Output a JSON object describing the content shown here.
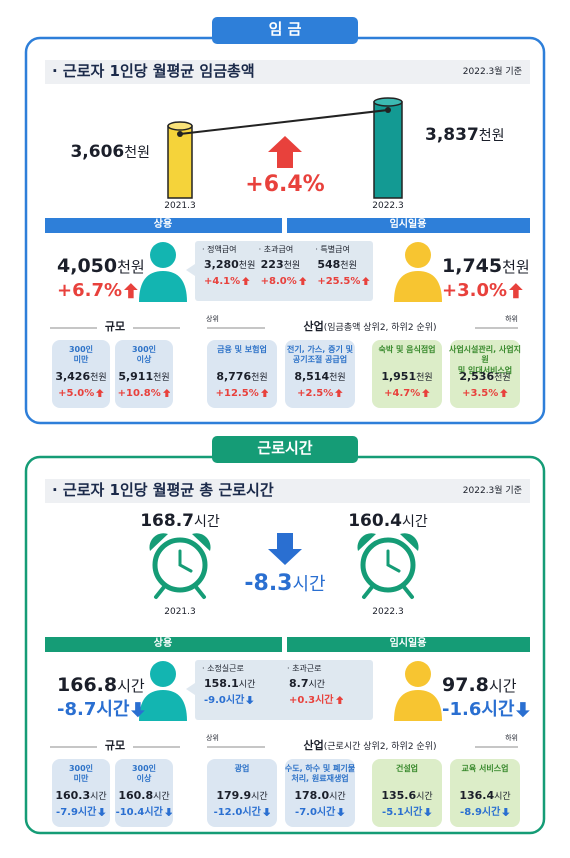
{
  "wage": {
    "tab": "임 금",
    "title": "· 근로자 1인당 월평균 임금총액",
    "date": "2022.3월 기준",
    "prev": {
      "value": "3,606",
      "unit": "천원",
      "label": "2021.3"
    },
    "curr": {
      "value": "3,837",
      "unit": "천원",
      "label": "2022.3"
    },
    "change": {
      "value": "+6.4%"
    },
    "regular": {
      "header": "상용",
      "value": "4,050",
      "unit": "천원",
      "change": "+6.7%",
      "items": [
        {
          "label": "· 정액급여",
          "value": "3,280",
          "unit": "천원",
          "change": "+4.1%"
        },
        {
          "label": "· 초과급여",
          "value": "223",
          "unit": "천원",
          "change": "+8.0%"
        },
        {
          "label": "· 특별급여",
          "value": "548",
          "unit": "천원",
          "change": "+25.5%"
        }
      ]
    },
    "temp": {
      "header": "임시일용",
      "value": "1,745",
      "unit": "천원",
      "change": "+3.0%"
    },
    "size": {
      "title": "규모",
      "items": [
        {
          "label": "300인\n미만",
          "value": "3,426",
          "unit": "천원",
          "change": "+5.0%"
        },
        {
          "label": "300인\n이상",
          "value": "5,911",
          "unit": "천원",
          "change": "+10.8%"
        }
      ]
    },
    "industry": {
      "title": "산업",
      "subtitle": "(임금총액 상위2, 하위2 순위)",
      "top": "상위",
      "bottom": "하위",
      "items": [
        {
          "label": "금융 및 보험업",
          "value": "8,776",
          "unit": "천원",
          "change": "+12.5%"
        },
        {
          "label": "전기, 가스, 증기 및\n공기조절 공급업",
          "value": "8,514",
          "unit": "천원",
          "change": "+2.5%"
        },
        {
          "label": "숙박 및 음식점업",
          "value": "1,951",
          "unit": "천원",
          "change": "+4.7%"
        },
        {
          "label": "사업시설관리, 사업지원\n및 임대서비스업",
          "value": "2,536",
          "unit": "천원",
          "change": "+3.5%"
        }
      ]
    }
  },
  "hours": {
    "tab": "근로시간",
    "title": "· 근로자 1인당 월평균 총 근로시간",
    "date": "2022.3월 기준",
    "prev": {
      "value": "168.7",
      "unit": "시간",
      "label": "2021.3"
    },
    "curr": {
      "value": "160.4",
      "unit": "시간",
      "label": "2022.3"
    },
    "change": {
      "value": "-8.3",
      "unit": "시간"
    },
    "regular": {
      "header": "상용",
      "value": "166.8",
      "unit": "시간",
      "change": "-8.7시간",
      "items": [
        {
          "label": "· 소정실근로",
          "value": "158.1",
          "unit": "시간",
          "change": "-9.0시간"
        },
        {
          "label": "· 초과근로",
          "value": "8.7",
          "unit": "시간",
          "change": "+0.3시간"
        }
      ]
    },
    "temp": {
      "header": "임시일용",
      "value": "97.8",
      "unit": "시간",
      "change": "-1.6시간"
    },
    "size": {
      "title": "규모",
      "items": [
        {
          "label": "300인\n미만",
          "value": "160.3",
          "unit": "시간",
          "change": "-7.9시간"
        },
        {
          "label": "300인\n이상",
          "value": "160.8",
          "unit": "시간",
          "change": "-10.4시간"
        }
      ]
    },
    "industry": {
      "title": "산업",
      "subtitle": "(근로시간 상위2, 하위2 순위)",
      "top": "상위",
      "bottom": "하위",
      "items": [
        {
          "label": "광업",
          "value": "179.9",
          "unit": "시간",
          "change": "-12.0시간"
        },
        {
          "label": "수도, 하수 및 폐기물\n처리, 원료재생업",
          "value": "178.0",
          "unit": "시간",
          "change": "-7.0시간"
        },
        {
          "label": "건설업",
          "value": "135.6",
          "unit": "시간",
          "change": "-5.1시간"
        },
        {
          "label": "교육 서비스업",
          "value": "136.4",
          "unit": "시간",
          "change": "-8.9시간"
        }
      ]
    }
  }
}
